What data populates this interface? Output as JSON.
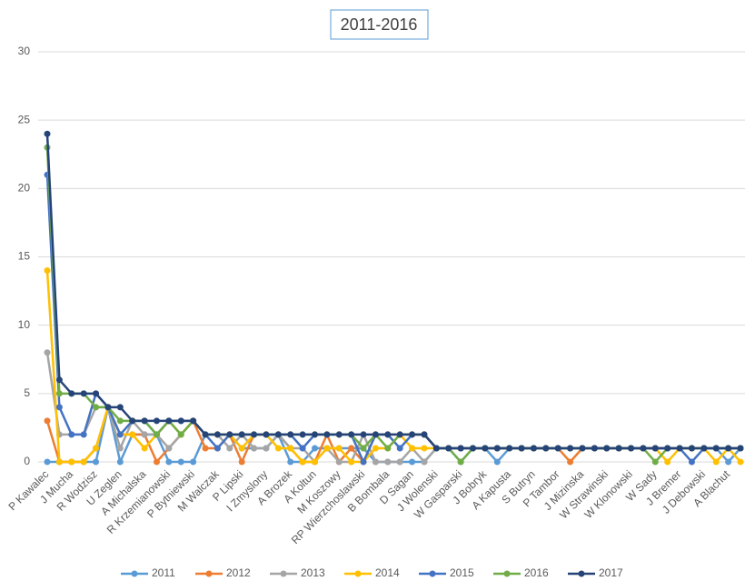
{
  "chart_data": {
    "type": "line",
    "title": "2011-2016",
    "categories": [
      "P Kawalec",
      null,
      "J Mucha",
      null,
      "R Wodzisz",
      null,
      "U Zeglen",
      null,
      "A Michalska",
      null,
      "R Krzemianowski",
      null,
      "P Bytniewski",
      null,
      "M Walczak",
      null,
      "P Lipski",
      null,
      "I Zmyslony",
      null,
      "A Brozek",
      null,
      "A Koltun",
      null,
      "M Koszowy",
      null,
      "RP Wierzchoslawski",
      null,
      "B Bombala",
      null,
      "D Sagan",
      null,
      "J Wolenski",
      null,
      "W Gasparski",
      null,
      "J Bobryk",
      null,
      "A Kapusta",
      null,
      "S Butryn",
      null,
      "P Tambor",
      null,
      "J Mizinska",
      null,
      "W Strawinski",
      null,
      "W Klonowski",
      null,
      "W Sady",
      null,
      "J Bremer",
      null,
      "J Debowski",
      null,
      "A Blachut",
      null
    ],
    "series": [
      {
        "name": "2011",
        "color": "#5b9bd5",
        "values": [
          0,
          0,
          0,
          0,
          0,
          4,
          0,
          2,
          2,
          2,
          0,
          0,
          0,
          2,
          2,
          2,
          1,
          1,
          1,
          2,
          0,
          0,
          1,
          1,
          1,
          1,
          1,
          0,
          0,
          0,
          0,
          0,
          1,
          1,
          0,
          1,
          1,
          0,
          1,
          1,
          1,
          1,
          1,
          1,
          1,
          1,
          1,
          1,
          1,
          1,
          1,
          1,
          1,
          1,
          1,
          1,
          0,
          1
        ]
      },
      {
        "name": "2012",
        "color": "#ed7d31",
        "values": [
          3,
          0,
          0,
          0,
          1,
          4,
          2,
          2,
          2,
          0,
          1,
          2,
          3,
          1,
          1,
          2,
          0,
          2,
          2,
          2,
          1,
          0,
          0,
          2,
          0,
          1,
          0,
          2,
          2,
          2,
          2,
          2,
          1,
          1,
          1,
          1,
          1,
          1,
          1,
          1,
          1,
          1,
          1,
          0,
          1,
          1,
          1,
          1,
          1,
          1,
          1,
          1,
          1,
          1,
          1,
          1,
          1,
          1
        ]
      },
      {
        "name": "2013",
        "color": "#a5a5a5",
        "values": [
          8,
          2,
          2,
          2,
          4,
          4,
          1,
          3,
          2,
          2,
          1,
          2,
          3,
          2,
          2,
          1,
          2,
          1,
          1,
          2,
          1,
          1,
          0,
          1,
          0,
          0,
          2,
          0,
          0,
          0,
          1,
          0,
          1,
          1,
          1,
          1,
          1,
          1,
          1,
          1,
          1,
          1,
          1,
          1,
          1,
          1,
          1,
          1,
          1,
          1,
          1,
          1,
          1,
          1,
          1,
          1,
          1,
          1
        ]
      },
      {
        "name": "2014",
        "color": "#ffc000",
        "values": [
          14,
          0,
          0,
          0,
          1,
          4,
          2,
          2,
          1,
          2,
          3,
          2,
          3,
          2,
          2,
          2,
          1,
          2,
          2,
          1,
          1,
          0,
          0,
          1,
          1,
          0,
          0,
          1,
          1,
          2,
          1,
          1,
          1,
          1,
          1,
          1,
          1,
          1,
          1,
          1,
          1,
          1,
          1,
          1,
          1,
          1,
          1,
          1,
          1,
          1,
          1,
          0,
          1,
          1,
          1,
          0,
          1,
          0
        ]
      },
      {
        "name": "2015",
        "color": "#4472c4",
        "values": [
          21,
          4,
          2,
          2,
          5,
          4,
          2,
          3,
          3,
          2,
          3,
          3,
          3,
          2,
          1,
          2,
          2,
          2,
          2,
          2,
          2,
          1,
          2,
          2,
          2,
          2,
          0,
          2,
          2,
          1,
          2,
          2,
          1,
          1,
          1,
          1,
          1,
          1,
          1,
          1,
          1,
          1,
          1,
          1,
          1,
          1,
          1,
          1,
          1,
          1,
          1,
          1,
          1,
          0,
          1,
          1,
          1,
          1
        ]
      },
      {
        "name": "2016",
        "color": "#70ad47",
        "values": [
          23,
          5,
          5,
          5,
          4,
          4,
          3,
          3,
          3,
          2,
          3,
          2,
          3,
          2,
          2,
          2,
          2,
          2,
          2,
          2,
          2,
          2,
          2,
          2,
          2,
          2,
          1,
          2,
          1,
          2,
          2,
          2,
          1,
          1,
          0,
          1,
          1,
          1,
          1,
          1,
          1,
          1,
          1,
          1,
          1,
          1,
          1,
          1,
          1,
          1,
          0,
          1,
          1,
          1,
          1,
          1,
          1,
          1
        ]
      },
      {
        "name": "2017",
        "color": "#264478",
        "values": [
          24,
          6,
          5,
          5,
          5,
          4,
          4,
          3,
          3,
          3,
          3,
          3,
          3,
          2,
          2,
          2,
          2,
          2,
          2,
          2,
          2,
          2,
          2,
          2,
          2,
          2,
          2,
          2,
          2,
          2,
          2,
          2,
          1,
          1,
          1,
          1,
          1,
          1,
          1,
          1,
          1,
          1,
          1,
          1,
          1,
          1,
          1,
          1,
          1,
          1,
          1,
          1,
          1,
          1,
          1,
          1,
          1,
          1
        ]
      }
    ],
    "ylim": [
      0,
      30
    ],
    "yticks": [
      0,
      5,
      10,
      15,
      20,
      25,
      30
    ],
    "grid": true,
    "legend": "bottom"
  }
}
